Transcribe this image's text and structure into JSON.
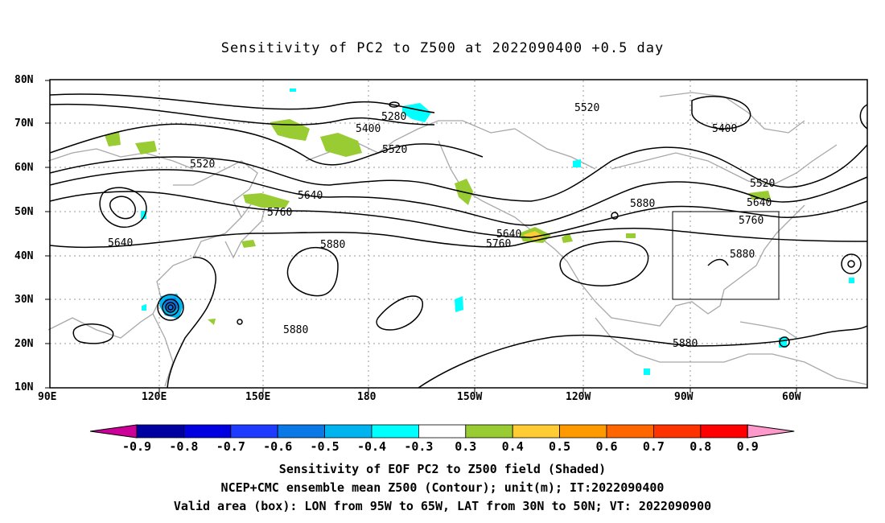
{
  "title": "Sensitivity of PC2 to Z500 at 2022090400 +0.5 day",
  "lat_labels": [
    "80N",
    "70N",
    "60N",
    "50N",
    "40N",
    "30N",
    "20N",
    "10N"
  ],
  "lon_labels": [
    "90E",
    "120E",
    "150E",
    "180",
    "150W",
    "120W",
    "90W",
    "60W"
  ],
  "contour_labels": [
    "5280",
    "5400",
    "5520",
    "5520",
    "5520",
    "5400",
    "5520",
    "5640",
    "5640",
    "5760",
    "5880",
    "5640",
    "5760",
    "5880",
    "5640",
    "5760",
    "5880",
    "5880",
    "5880"
  ],
  "colorbar": {
    "labels": [
      "-0.9",
      "-0.8",
      "-0.7",
      "-0.6",
      "-0.5",
      "-0.4",
      "-0.3",
      "0.3",
      "0.4",
      "0.5",
      "0.6",
      "0.7",
      "0.8",
      "0.9"
    ],
    "colors": [
      "#0000a0",
      "#0000e0",
      "#1e3cff",
      "#0a78e6",
      "#00b4f0",
      "#00ffff",
      "#ffffff",
      "#99cc33",
      "#ffcc33",
      "#ff9900",
      "#ff6600",
      "#ff3300",
      "#ff0000"
    ],
    "end_low": "#cc0099",
    "end_high": "#ff99cc"
  },
  "box": {
    "label": "Valid area",
    "lon": [
      "95W",
      "65W"
    ],
    "lat": [
      "30N",
      "50N"
    ]
  },
  "captions": [
    "Sensitivity of EOF PC2 to Z500 field (Shaded)",
    "NCEP+CMC ensemble mean Z500 (Contour); unit(m); IT:2022090400",
    "Valid area (box): LON from 95W to 65W, LAT from 30N to 50N; VT: 2022090900"
  ]
}
